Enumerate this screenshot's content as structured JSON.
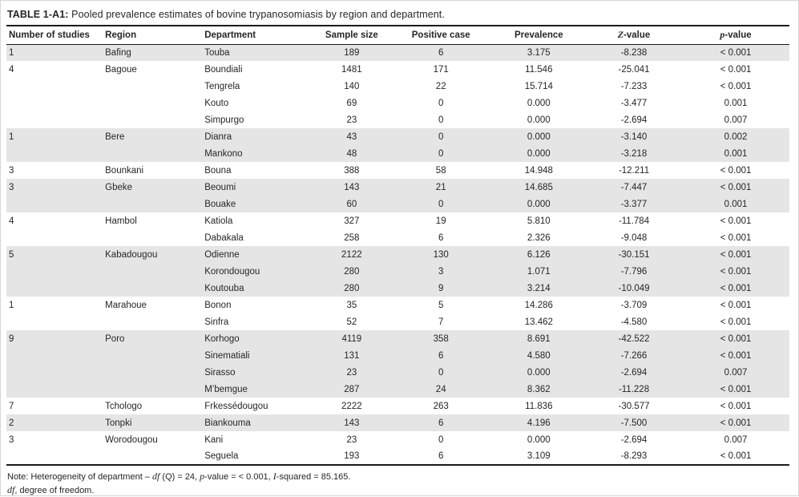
{
  "title": {
    "label": "TABLE 1-A1:",
    "text": " Pooled prevalence estimates of bovine trypanosomiasis by region and department."
  },
  "table": {
    "columns": [
      "Number of studies",
      "Region",
      "Department",
      "Sample size",
      "Positive case",
      "Prevalence",
      "Z-value",
      "p-value"
    ],
    "groups": [
      {
        "number_of_studies": "1",
        "region": "Bafing",
        "rows": [
          {
            "department": "Touba",
            "sample_size": "189",
            "positive_case": "6",
            "prevalence": "3.175",
            "z_value": "-8.238",
            "p_value": "< 0.001"
          }
        ]
      },
      {
        "number_of_studies": "4",
        "region": "Bagoue",
        "rows": [
          {
            "department": "Boundiali",
            "sample_size": "1481",
            "positive_case": "171",
            "prevalence": "11.546",
            "z_value": "-25.041",
            "p_value": "< 0.001"
          },
          {
            "department": "Tengrela",
            "sample_size": "140",
            "positive_case": "22",
            "prevalence": "15.714",
            "z_value": "-7.233",
            "p_value": "< 0.001"
          },
          {
            "department": "Kouto",
            "sample_size": "69",
            "positive_case": "0",
            "prevalence": "0.000",
            "z_value": "-3.477",
            "p_value": "0.001"
          },
          {
            "department": "Simpurgo",
            "sample_size": "23",
            "positive_case": "0",
            "prevalence": "0.000",
            "z_value": "-2.694",
            "p_value": "0.007"
          }
        ]
      },
      {
        "number_of_studies": "1",
        "region": "Bere",
        "rows": [
          {
            "department": "Dianra",
            "sample_size": "43",
            "positive_case": "0",
            "prevalence": "0.000",
            "z_value": "-3.140",
            "p_value": "0.002"
          },
          {
            "department": "Mankono",
            "sample_size": "48",
            "positive_case": "0",
            "prevalence": "0.000",
            "z_value": "-3.218",
            "p_value": "0.001"
          }
        ]
      },
      {
        "number_of_studies": "3",
        "region": "Bounkani",
        "rows": [
          {
            "department": "Bouna",
            "sample_size": "388",
            "positive_case": "58",
            "prevalence": "14.948",
            "z_value": "-12.211",
            "p_value": "< 0.001"
          }
        ]
      },
      {
        "number_of_studies": "3",
        "region": "Gbeke",
        "rows": [
          {
            "department": "Beoumi",
            "sample_size": "143",
            "positive_case": "21",
            "prevalence": "14.685",
            "z_value": "-7.447",
            "p_value": "< 0.001"
          },
          {
            "department": "Bouake",
            "sample_size": "60",
            "positive_case": "0",
            "prevalence": "0.000",
            "z_value": "-3.377",
            "p_value": "0.001"
          }
        ]
      },
      {
        "number_of_studies": "4",
        "region": "Hambol",
        "rows": [
          {
            "department": "Katiola",
            "sample_size": "327",
            "positive_case": "19",
            "prevalence": "5.810",
            "z_value": "-11.784",
            "p_value": "< 0.001"
          },
          {
            "department": "Dabakala",
            "sample_size": "258",
            "positive_case": "6",
            "prevalence": "2.326",
            "z_value": "-9.048",
            "p_value": "< 0.001"
          }
        ]
      },
      {
        "number_of_studies": "5",
        "region": "Kabadougou",
        "rows": [
          {
            "department": "Odienne",
            "sample_size": "2122",
            "positive_case": "130",
            "prevalence": "6.126",
            "z_value": "-30.151",
            "p_value": "< 0.001"
          },
          {
            "department": "Korondougou",
            "sample_size": "280",
            "positive_case": "3",
            "prevalence": "1.071",
            "z_value": "-7.796",
            "p_value": "< 0.001"
          },
          {
            "department": "Koutouba",
            "sample_size": "280",
            "positive_case": "9",
            "prevalence": "3.214",
            "z_value": "-10.049",
            "p_value": "< 0.001"
          }
        ]
      },
      {
        "number_of_studies": "1",
        "region": "Marahoue",
        "rows": [
          {
            "department": "Bonon",
            "sample_size": "35",
            "positive_case": "5",
            "prevalence": "14.286",
            "z_value": "-3.709",
            "p_value": "< 0.001"
          },
          {
            "department": "Sinfra",
            "sample_size": "52",
            "positive_case": "7",
            "prevalence": "13.462",
            "z_value": "-4.580",
            "p_value": "< 0.001"
          }
        ]
      },
      {
        "number_of_studies": "9",
        "region": "Poro",
        "rows": [
          {
            "department": "Korhogo",
            "sample_size": "4119",
            "positive_case": "358",
            "prevalence": "8.691",
            "z_value": "-42.522",
            "p_value": "< 0.001"
          },
          {
            "department": "Sinematiali",
            "sample_size": "131",
            "positive_case": "6",
            "prevalence": "4.580",
            "z_value": "-7.266",
            "p_value": "< 0.001"
          },
          {
            "department": "Sirasso",
            "sample_size": "23",
            "positive_case": "0",
            "prevalence": "0.000",
            "z_value": "-2.694",
            "p_value": "0.007"
          },
          {
            "department": "M’bemgue",
            "sample_size": "287",
            "positive_case": "24",
            "prevalence": "8.362",
            "z_value": "-11.228",
            "p_value": "< 0.001"
          }
        ]
      },
      {
        "number_of_studies": "7",
        "region": "Tchologo",
        "rows": [
          {
            "department": "Frkessédougou",
            "sample_size": "2222",
            "positive_case": "263",
            "prevalence": "11.836",
            "z_value": "-30.577",
            "p_value": "< 0.001"
          }
        ]
      },
      {
        "number_of_studies": "2",
        "region": "Tonpki",
        "rows": [
          {
            "department": "Biankouma",
            "sample_size": "143",
            "positive_case": "6",
            "prevalence": "4.196",
            "z_value": "-7.500",
            "p_value": "< 0.001"
          }
        ]
      },
      {
        "number_of_studies": "3",
        "region": "Worodougou",
        "rows": [
          {
            "department": "Kani",
            "sample_size": "23",
            "positive_case": "0",
            "prevalence": "0.000",
            "z_value": "-2.694",
            "p_value": "0.007"
          },
          {
            "department": "Seguela",
            "sample_size": "193",
            "positive_case": "6",
            "prevalence": "3.109",
            "z_value": "-8.293",
            "p_value": "< 0.001"
          }
        ]
      }
    ]
  },
  "notes": {
    "heterogeneity": [
      {
        "t": "Note: Heterogeneity of department – ",
        "i": false
      },
      {
        "t": "df",
        "i": true
      },
      {
        "t": " (Q) = 24, ",
        "i": false
      },
      {
        "t": "p",
        "i": true
      },
      {
        "t": "-value = < 0.001, ",
        "i": false
      },
      {
        "t": "I",
        "i": true
      },
      {
        "t": "-squared = 85.165.",
        "i": false
      }
    ],
    "df_definition": [
      {
        "t": "df",
        "i": true
      },
      {
        "t": ", degree of freedom.",
        "i": false
      }
    ]
  },
  "colors": {
    "row_shade": "#e5e5e5",
    "rule": "#1a1a1a",
    "text": "#262626"
  }
}
